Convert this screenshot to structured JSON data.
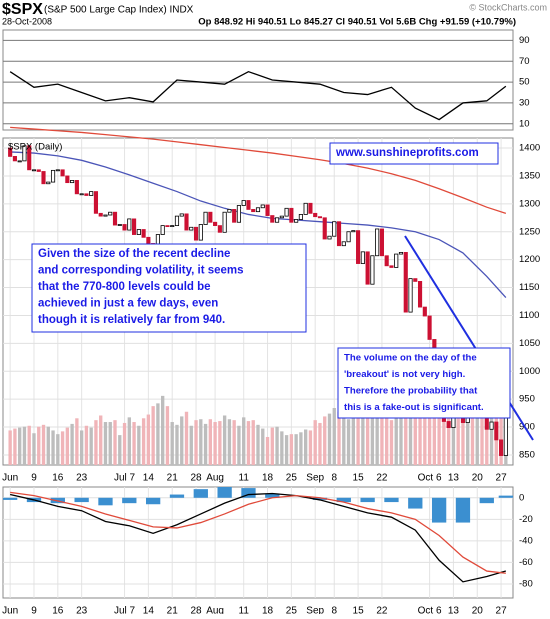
{
  "header": {
    "symbol": "$SPX",
    "name": "(S&P 500 Large Cap Index) INDX",
    "credit": "© StockCharts.com",
    "date": "28-Oct-2008",
    "quote": "Op 848.92 Hi 940.51 Lo 845.27 Cl 940.51 Vol 5.6B Chg +91.59 (+10.79%)"
  },
  "chart_data": [
    {
      "type": "line",
      "xlim": [
        -1.5,
        105.5
      ],
      "ylim": [
        4,
        100
      ],
      "yticks": [
        10,
        30,
        50,
        70,
        90
      ],
      "series": [
        {
          "color": "#000000",
          "x": [
            0,
            5,
            10,
            15,
            20,
            25,
            30,
            35,
            40,
            45,
            50,
            55,
            60,
            65,
            70,
            75,
            80,
            85,
            90,
            95,
            100,
            104
          ],
          "values": [
            60,
            45,
            48,
            40,
            32,
            35,
            31,
            52,
            50,
            48,
            60,
            52,
            50,
            48,
            40,
            38,
            45,
            25,
            14,
            30,
            32,
            46
          ]
        }
      ]
    },
    {
      "type": "candlestick",
      "label": "$SPX (Daily)",
      "xlim": [
        -1.5,
        105.5
      ],
      "ylim": [
        832,
        1418
      ],
      "yticks": [
        850,
        900,
        950,
        1000,
        1050,
        1100,
        1150,
        1200,
        1250,
        1300,
        1350,
        1400
      ],
      "y2lim": [
        0,
        35
      ],
      "xticks": [
        {
          "value": 0,
          "label": "Jun"
        },
        {
          "value": 5,
          "label": "9"
        },
        {
          "value": 10,
          "label": "16"
        },
        {
          "value": 15,
          "label": "23"
        },
        {
          "value": 24,
          "label": "Jul 7"
        },
        {
          "value": 29,
          "label": "14"
        },
        {
          "value": 34,
          "label": "21"
        },
        {
          "value": 39,
          "label": "28"
        },
        {
          "value": 43,
          "label": "Aug"
        },
        {
          "value": 49,
          "label": "11"
        },
        {
          "value": 54,
          "label": "18"
        },
        {
          "value": 59,
          "label": "25"
        },
        {
          "value": 64,
          "label": "Sep"
        },
        {
          "value": 68,
          "label": "8"
        },
        {
          "value": 73,
          "label": "15"
        },
        {
          "value": 78,
          "label": "22"
        },
        {
          "value": 88,
          "label": "Oct 6"
        },
        {
          "value": 93,
          "label": "13"
        },
        {
          "value": 98,
          "label": "20"
        },
        {
          "value": 103,
          "label": "27"
        }
      ],
      "up_color": "#000000",
      "down_color": "#cc1133",
      "volume_up_color": "#bdbdbd",
      "volume_down_color": "#f0b4b8",
      "open": [
        1400,
        1385,
        1377,
        1377,
        1404,
        1361,
        1361,
        1358,
        1336,
        1339,
        1360,
        1361,
        1350,
        1338,
        1342,
        1318,
        1318,
        1315,
        1322,
        1283,
        1278,
        1280,
        1285,
        1262,
        1263,
        1253,
        1273,
        1245,
        1254,
        1240,
        1229,
        1215,
        1245,
        1261,
        1260,
        1261,
        1278,
        1282,
        1253,
        1258,
        1235,
        1263,
        1285,
        1267,
        1261,
        1249,
        1285,
        1290,
        1267,
        1297,
        1306,
        1290,
        1286,
        1293,
        1298,
        1279,
        1267,
        1275,
        1278,
        1292,
        1267,
        1272,
        1281,
        1301,
        1283,
        1277,
        1275,
        1237,
        1242,
        1268,
        1225,
        1232,
        1250,
        1252,
        1193,
        1214,
        1156,
        1207,
        1255,
        1207,
        1189,
        1186,
        1210,
        1213,
        1106,
        1166,
        1161,
        1115,
        1099,
        1057,
        997,
        985,
        910,
        899,
        1003,
        998,
        908,
        946,
        940,
        986,
        955,
        896,
        909,
        877,
        848.92
      ],
      "close": [
        1385,
        1377,
        1377,
        1404,
        1361,
        1361,
        1358,
        1336,
        1339,
        1360,
        1361,
        1350,
        1338,
        1342,
        1318,
        1318,
        1315,
        1322,
        1283,
        1278,
        1280,
        1285,
        1262,
        1263,
        1253,
        1273,
        1245,
        1254,
        1240,
        1229,
        1215,
        1245,
        1261,
        1260,
        1261,
        1278,
        1282,
        1253,
        1258,
        1235,
        1263,
        1285,
        1267,
        1261,
        1249,
        1285,
        1290,
        1267,
        1297,
        1306,
        1290,
        1286,
        1293,
        1298,
        1279,
        1267,
        1275,
        1278,
        1292,
        1267,
        1272,
        1281,
        1301,
        1283,
        1277,
        1275,
        1237,
        1242,
        1268,
        1225,
        1232,
        1250,
        1252,
        1193,
        1214,
        1156,
        1207,
        1255,
        1207,
        1189,
        1186,
        1210,
        1213,
        1106,
        1166,
        1161,
        1115,
        1099,
        1057,
        997,
        985,
        910,
        899,
        1003,
        998,
        908,
        946,
        940,
        986,
        955,
        896,
        909,
        877,
        848.92,
        940.51
      ],
      "volume": [
        3.7,
        3.9,
        4.0,
        4.1,
        4.2,
        3.4,
        4.1,
        4.3,
        4.1,
        3.7,
        3.3,
        3.6,
        4.0,
        4.4,
        5.0,
        3.7,
        4.2,
        4.0,
        4.8,
        5.3,
        4.6,
        4.6,
        4.8,
        3.2,
        4.5,
        5.1,
        4.6,
        4.2,
        5.0,
        5.4,
        6.3,
        6.6,
        7.4,
        6.3,
        4.6,
        4.3,
        5.2,
        5.7,
        4.2,
        4.8,
        4.9,
        4.4,
        4.9,
        4.6,
        4.7,
        5.3,
        4.9,
        4.8,
        4.2,
        5.1,
        4.7,
        4.8,
        4.3,
        3.9,
        3.0,
        4.0,
        4.1,
        3.6,
        3.2,
        3.3,
        3.3,
        3.5,
        3.8,
        3.7,
        4.8,
        4.5,
        5.2,
        5.5,
        6.1,
        5.7,
        5.8,
        4.9,
        5.1,
        6.8,
        9.4,
        9.5,
        10.1,
        9.0,
        5.4,
        5.2,
        4.8,
        5.0,
        5.2,
        9.2,
        5.6,
        6.5,
        6.2,
        6.7,
        9.0,
        8.0,
        7.9,
        7.4,
        8.7,
        10.1,
        7.6,
        7.6,
        9.1,
        7.0,
        5.6,
        5.8,
        6.1,
        7.2,
        6.5,
        5.1,
        5.6
      ],
      "series": [
        {
          "color": "#e04a3a",
          "x": [
            0,
            5,
            10,
            15,
            20,
            25,
            30,
            35,
            40,
            45,
            50,
            55,
            60,
            65,
            70,
            75,
            80,
            85,
            90,
            95,
            100,
            104
          ],
          "values": [
            1437,
            1434,
            1431,
            1428,
            1424,
            1420,
            1416,
            1411,
            1406,
            1401,
            1396,
            1391,
            1385,
            1379,
            1372,
            1364,
            1354,
            1342,
            1327,
            1311,
            1294,
            1283
          ]
        },
        {
          "color": "#4b55b8",
          "x": [
            0,
            5,
            10,
            15,
            20,
            25,
            30,
            35,
            40,
            45,
            50,
            55,
            60,
            65,
            70,
            75,
            80,
            85,
            90,
            95,
            100,
            104
          ],
          "values": [
            1393,
            1391,
            1386,
            1378,
            1366,
            1352,
            1337,
            1322,
            1305,
            1292,
            1281,
            1274,
            1271,
            1268,
            1265,
            1262,
            1257,
            1250,
            1236,
            1212,
            1170,
            1132
          ]
        }
      ],
      "annotations": [
        {
          "lines": [
            "www.sunshineprofits.com"
          ]
        },
        {
          "lines": [
            "Given the size of the recent decline",
            "and corresponding volatility, it seems",
            "that the 770-800 levels could be",
            "achieved in just a few days, even",
            "though it is relatively far from 940."
          ]
        },
        {
          "lines": [
            "The volume on the day of the",
            "'breakout' is not very high.",
            "Therefore the probability that",
            "this is a fake-out is significant."
          ]
        }
      ]
    },
    {
      "type": "macd",
      "xlim": [
        -1.5,
        105.5
      ],
      "ylim": [
        -93,
        10
      ],
      "yticks": [
        0,
        -20,
        -40,
        -60,
        -80
      ],
      "xticks": [
        {
          "value": 0,
          "label": "Jun"
        },
        {
          "value": 5,
          "label": "9"
        },
        {
          "value": 10,
          "label": "16"
        },
        {
          "value": 15,
          "label": "23"
        },
        {
          "value": 24,
          "label": "Jul 7"
        },
        {
          "value": 29,
          "label": "14"
        },
        {
          "value": 34,
          "label": "21"
        },
        {
          "value": 39,
          "label": "28"
        },
        {
          "value": 43,
          "label": "Aug"
        },
        {
          "value": 49,
          "label": "11"
        },
        {
          "value": 54,
          "label": "18"
        },
        {
          "value": 59,
          "label": "25"
        },
        {
          "value": 64,
          "label": "Sep"
        },
        {
          "value": 68,
          "label": "8"
        },
        {
          "value": 73,
          "label": "15"
        },
        {
          "value": 78,
          "label": "22"
        },
        {
          "value": 88,
          "label": "Oct 6"
        },
        {
          "value": 93,
          "label": "13"
        },
        {
          "value": 98,
          "label": "20"
        },
        {
          "value": 103,
          "label": "27"
        }
      ],
      "histogram": {
        "color": "#3b8fd0",
        "x": [
          0,
          5,
          10,
          15,
          20,
          25,
          30,
          35,
          40,
          45,
          50,
          55,
          60,
          65,
          70,
          75,
          80,
          85,
          90,
          95,
          100,
          104
        ],
        "values": [
          -2,
          -4,
          -5,
          -4,
          -7,
          -5,
          -6,
          3,
          8,
          10,
          9,
          4,
          0,
          -2,
          -4,
          -4,
          -4,
          -10,
          -23,
          -23,
          -5,
          2
        ]
      },
      "series": [
        {
          "color": "#000000",
          "x": [
            0,
            5,
            10,
            15,
            20,
            25,
            30,
            35,
            40,
            45,
            50,
            55,
            60,
            65,
            70,
            75,
            80,
            85,
            90,
            95,
            100,
            104
          ],
          "values": [
            3,
            -2,
            -8,
            -12,
            -22,
            -26,
            -33,
            -25,
            -15,
            -5,
            3,
            4,
            2,
            -2,
            -8,
            -14,
            -18,
            -30,
            -58,
            -78,
            -73,
            -68
          ]
        },
        {
          "color": "#e04a3a",
          "x": [
            0,
            5,
            10,
            15,
            20,
            25,
            30,
            35,
            40,
            45,
            50,
            55,
            60,
            65,
            70,
            75,
            80,
            85,
            90,
            95,
            100,
            104
          ],
          "values": [
            5,
            2,
            -3,
            -8,
            -15,
            -21,
            -27,
            -28,
            -23,
            -15,
            -6,
            0,
            2,
            0,
            -4,
            -10,
            -14,
            -20,
            -35,
            -55,
            -68,
            -70
          ]
        }
      ]
    }
  ]
}
